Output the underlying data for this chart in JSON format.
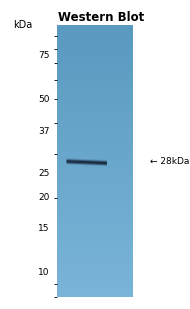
{
  "title": "Western Blot",
  "kda_label": "kDa",
  "markers": [
    75,
    50,
    37,
    25,
    20,
    15,
    10
  ],
  "band_kda": 28,
  "band_label": "← 28kDa",
  "gel_color_top": "#7ab4d8",
  "gel_color_bottom": "#5a9ac0",
  "band_color": "#1a2e45",
  "background_color": "#ffffff",
  "fig_width": 1.9,
  "fig_height": 3.09,
  "dpi": 100,
  "y_min": 8,
  "y_max": 100
}
